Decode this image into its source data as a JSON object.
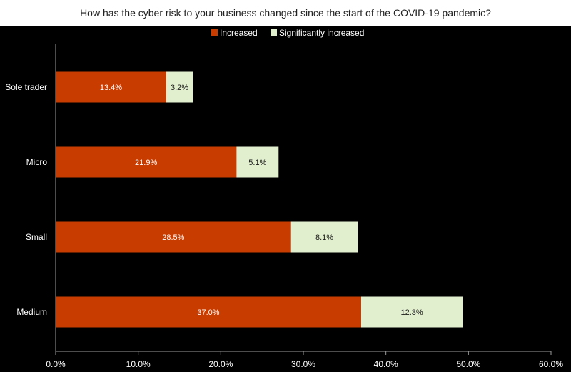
{
  "chart_data": {
    "type": "bar",
    "orientation": "horizontal",
    "stacked": true,
    "title": "How has the cyber  risk to your business changed since the start of the COVID-19 pandemic?",
    "categories": [
      "Sole trader",
      "Micro",
      "Small",
      "Medium"
    ],
    "series": [
      {
        "name": "Increased",
        "color": "#c83c00",
        "values": [
          13.4,
          21.9,
          28.5,
          37.0
        ],
        "labels": [
          "13.4%",
          "21.9%",
          "28.5%",
          "37.0%"
        ]
      },
      {
        "name": "Significantly increased",
        "color": "#e2efcf",
        "values": [
          3.2,
          5.1,
          8.1,
          12.3
        ],
        "labels": [
          "3.2%",
          "5.1%",
          "8.1%",
          "12.3%"
        ]
      }
    ],
    "xlim": [
      0,
      60
    ],
    "xticks": [
      "0.0%",
      "10.0%",
      "20.0%",
      "30.0%",
      "40.0%",
      "50.0%",
      "60.0%"
    ],
    "grid": false,
    "legend_position": "top"
  }
}
